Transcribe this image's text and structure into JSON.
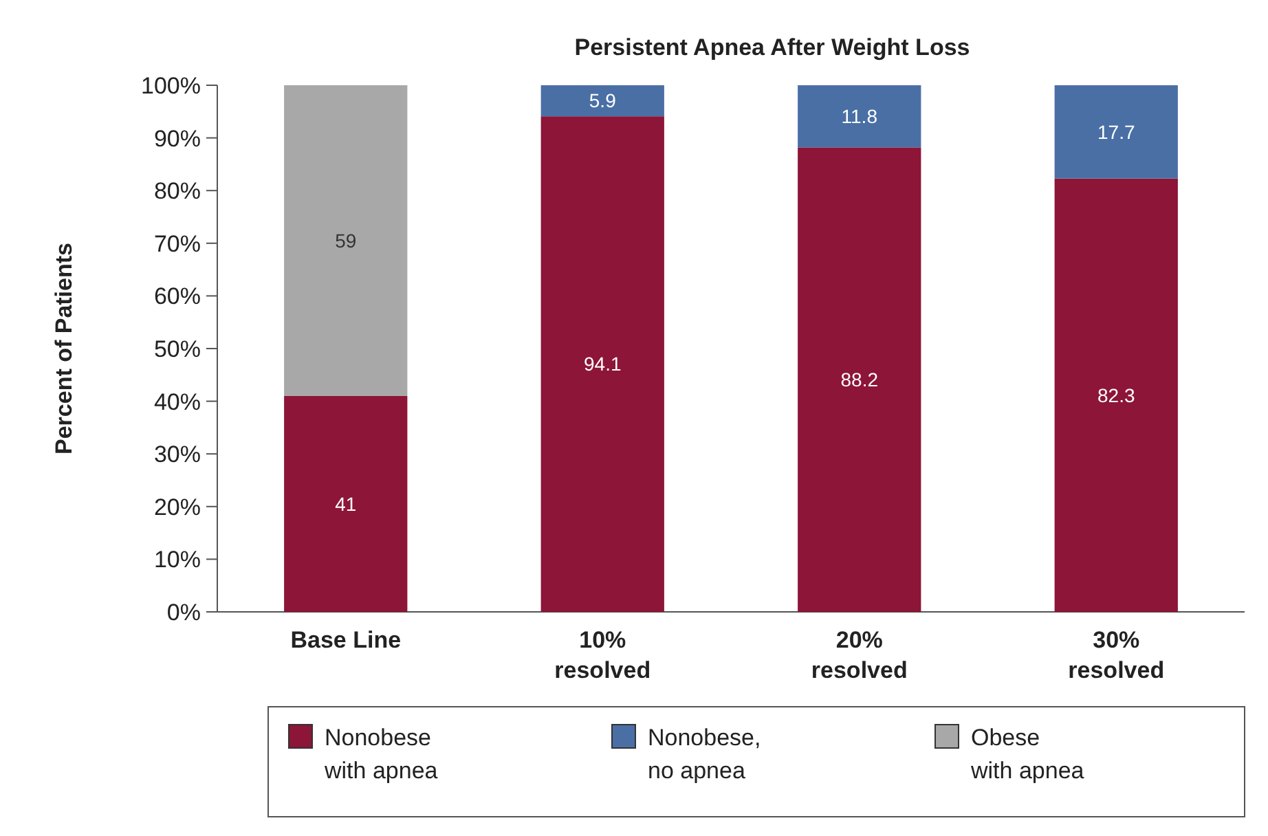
{
  "chart_data": {
    "type": "bar",
    "title": "Persistent Apnea After Weight Loss",
    "ylabel": "Percent of Patients",
    "categories": [
      "Base Line",
      "10% resolved",
      "20% resolved",
      "30% resolved"
    ],
    "stacked": true,
    "data_labels": true,
    "legend": "bottom",
    "grid": false,
    "ylim": [
      0,
      100
    ],
    "yticks": [
      {
        "value": 0,
        "label": "0%"
      },
      {
        "value": 10,
        "label": "10%"
      },
      {
        "value": 20,
        "label": "20%"
      },
      {
        "value": 30,
        "label": "30%"
      },
      {
        "value": 40,
        "label": "40%"
      },
      {
        "value": 50,
        "label": "50%"
      },
      {
        "value": 60,
        "label": "60%"
      },
      {
        "value": 70,
        "label": "70%"
      },
      {
        "value": 80,
        "label": "80%"
      },
      {
        "value": 90,
        "label": "90%"
      },
      {
        "value": 100,
        "label": "100%"
      }
    ],
    "series": [
      {
        "name": "Nonobese with apnea",
        "color": "#8c1538",
        "values": [
          41,
          94.1,
          88.2,
          82.3
        ]
      },
      {
        "name": "Nonobese, no apnea",
        "color": "#4a6fa5",
        "values": [
          null,
          5.9,
          11.8,
          17.7
        ]
      },
      {
        "name": "Obese with apnea",
        "color": "#a8a8a8",
        "values": [
          59,
          null,
          null,
          null
        ]
      }
    ]
  }
}
